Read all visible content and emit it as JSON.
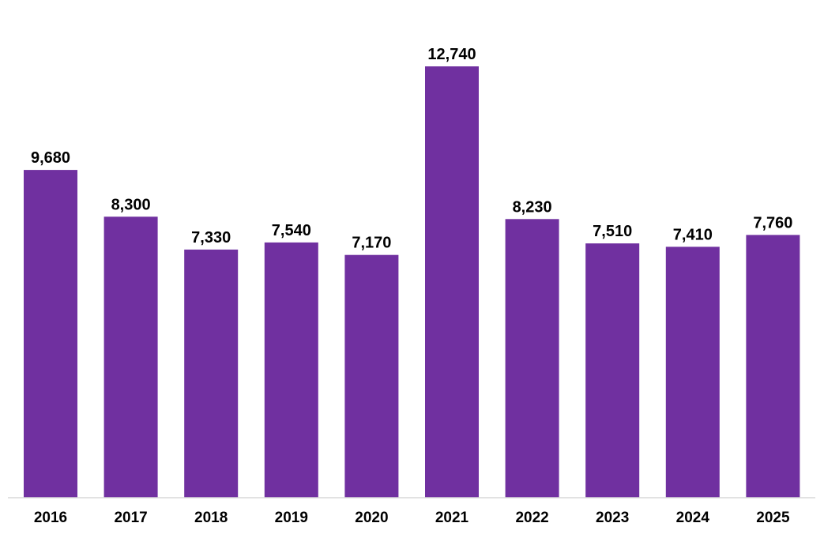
{
  "chart_data": {
    "type": "bar",
    "title": "",
    "xlabel": "",
    "ylabel": "",
    "categories": [
      "2016",
      "2017",
      "2018",
      "2019",
      "2020",
      "2021",
      "2022",
      "2023",
      "2024",
      "2025"
    ],
    "values": [
      9680,
      8300,
      7330,
      7540,
      7170,
      12740,
      8230,
      7510,
      7410,
      7760
    ],
    "value_labels": [
      "9,680",
      "8,300",
      "7,330",
      "7,540",
      "7,170",
      "12,740",
      "8,230",
      "7,510",
      "7,410",
      "7,760"
    ],
    "ylim": [
      0,
      12740
    ],
    "grid": false,
    "legend": "none",
    "colors": {
      "bar": "#7030a0",
      "axis": "#d9d9d9",
      "text": "#000000"
    }
  }
}
